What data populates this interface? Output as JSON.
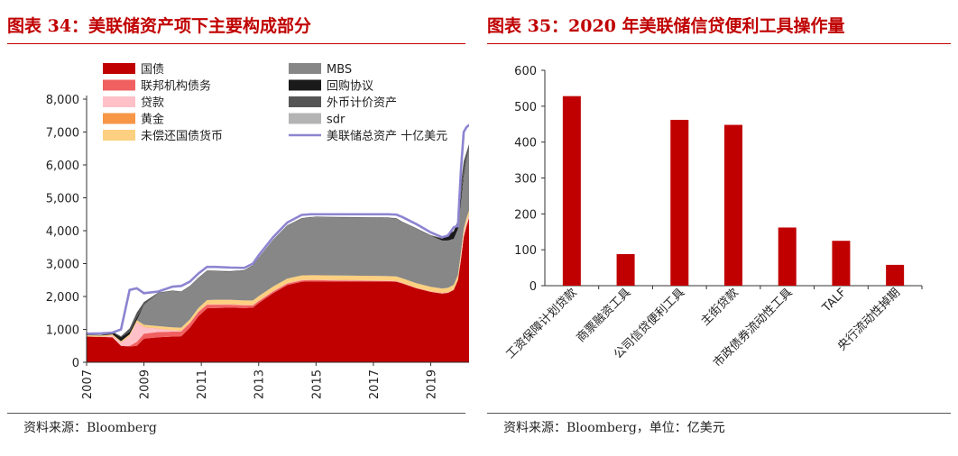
{
  "chart_data": [
    {
      "type": "area",
      "title": "图表 34：美联储资产项下主要构成部分",
      "xlabel": "",
      "ylabel": "",
      "x_ticks": [
        "2007",
        "2009",
        "2011",
        "2013",
        "2015",
        "2017",
        "2019"
      ],
      "y_ticks": [
        "0",
        "1,000",
        "2,000",
        "3,000",
        "4,000",
        "5,000",
        "6,000",
        "7,000",
        "8,000"
      ],
      "ylim": [
        0,
        8000
      ],
      "xlim": [
        2007,
        2020.4
      ],
      "x": [
        2007.0,
        2007.5,
        2007.9,
        2008.2,
        2008.5,
        2008.75,
        2009.0,
        2009.5,
        2010.0,
        2010.3,
        2010.6,
        2010.9,
        2011.2,
        2011.5,
        2012.0,
        2012.5,
        2012.8,
        2013.0,
        2013.5,
        2014.0,
        2014.5,
        2014.8,
        2015.0,
        2015.5,
        2016.0,
        2016.5,
        2017.0,
        2017.5,
        2017.8,
        2018.0,
        2018.5,
        2019.0,
        2019.4,
        2019.6,
        2019.8,
        2019.95,
        2020.05,
        2020.15,
        2020.25,
        2020.4
      ],
      "series": [
        {
          "name": "国债",
          "color": "#c00000",
          "values": [
            780,
            770,
            760,
            500,
            480,
            500,
            720,
            760,
            780,
            790,
            1050,
            1400,
            1640,
            1650,
            1660,
            1650,
            1660,
            1800,
            2100,
            2350,
            2450,
            2460,
            2460,
            2460,
            2460,
            2460,
            2460,
            2460,
            2450,
            2400,
            2250,
            2140,
            2090,
            2110,
            2200,
            2500,
            3100,
            3800,
            4150,
            4550
          ]
        },
        {
          "name": "联邦机构债务",
          "color": "#f06060",
          "values": [
            0,
            0,
            0,
            0,
            20,
            120,
            150,
            160,
            150,
            150,
            140,
            130,
            110,
            100,
            90,
            80,
            70,
            60,
            50,
            45,
            40,
            35,
            35,
            30,
            25,
            20,
            15,
            10,
            8,
            5,
            3,
            3,
            2,
            2,
            2,
            2,
            2,
            2,
            2,
            2
          ]
        },
        {
          "name": "贷款",
          "color": "#ffc0c8",
          "values": [
            0,
            0,
            50,
            100,
            300,
            600,
            200,
            100,
            40,
            20,
            10,
            10,
            10,
            10,
            10,
            10,
            10,
            10,
            10,
            10,
            10,
            10,
            10,
            10,
            10,
            10,
            10,
            10,
            10,
            10,
            10,
            10,
            10,
            10,
            10,
            10,
            80,
            120,
            100,
            90
          ]
        },
        {
          "name": "黄金",
          "color": "#f79646",
          "values": [
            11,
            11,
            11,
            11,
            11,
            11,
            11,
            11,
            11,
            11,
            11,
            11,
            11,
            11,
            11,
            11,
            11,
            11,
            11,
            11,
            11,
            11,
            11,
            11,
            11,
            11,
            11,
            11,
            11,
            11,
            11,
            11,
            11,
            11,
            11,
            11,
            11,
            11,
            11,
            11
          ]
        },
        {
          "name": "未偿还国债货币",
          "color": "#fcd080",
          "values": [
            30,
            30,
            30,
            30,
            40,
            50,
            60,
            70,
            80,
            80,
            90,
            100,
            120,
            130,
            130,
            130,
            130,
            130,
            130,
            130,
            130,
            130,
            130,
            130,
            130,
            130,
            130,
            130,
            130,
            130,
            130,
            130,
            130,
            130,
            130,
            130,
            130,
            130,
            130,
            130
          ]
        },
        {
          "name": "MBS",
          "color": "#878787",
          "values": [
            0,
            0,
            0,
            0,
            0,
            0,
            600,
            1000,
            1100,
            1080,
            1000,
            900,
            880,
            860,
            850,
            900,
            1050,
            1150,
            1400,
            1600,
            1720,
            1750,
            1760,
            1760,
            1760,
            1760,
            1760,
            1760,
            1750,
            1700,
            1650,
            1550,
            1460,
            1440,
            1400,
            1400,
            1500,
            1600,
            1800,
            1950
          ]
        },
        {
          "name": "回购协议",
          "color": "#1a1a1a",
          "values": [
            0,
            0,
            60,
            120,
            80,
            80,
            10,
            0,
            0,
            0,
            0,
            0,
            0,
            0,
            0,
            0,
            0,
            0,
            0,
            0,
            0,
            0,
            0,
            0,
            0,
            0,
            0,
            0,
            0,
            0,
            0,
            0,
            50,
            180,
            220,
            250,
            200,
            100,
            50,
            20
          ]
        },
        {
          "name": "外币计价资产",
          "color": "#555555",
          "values": [
            20,
            20,
            20,
            30,
            100,
            150,
            80,
            20,
            20,
            20,
            20,
            20,
            20,
            20,
            20,
            20,
            20,
            20,
            20,
            20,
            20,
            20,
            20,
            20,
            20,
            20,
            20,
            20,
            20,
            20,
            20,
            20,
            20,
            20,
            20,
            20,
            400,
            350,
            150,
            50
          ]
        },
        {
          "name": "sdr",
          "color": "#b4b4b4",
          "values": [
            2,
            2,
            2,
            2,
            2,
            2,
            5,
            5,
            5,
            5,
            5,
            5,
            5,
            5,
            5,
            5,
            5,
            5,
            5,
            5,
            5,
            5,
            5,
            5,
            5,
            5,
            5,
            5,
            5,
            5,
            5,
            5,
            5,
            5,
            5,
            5,
            5,
            5,
            5,
            5
          ]
        }
      ],
      "line": {
        "name": "美联储总资产 十亿美元",
        "color": "#8c84d0",
        "values": [
          870,
          880,
          900,
          1000,
          2200,
          2250,
          2100,
          2150,
          2300,
          2320,
          2450,
          2700,
          2900,
          2900,
          2880,
          2870,
          3000,
          3250,
          3800,
          4250,
          4480,
          4500,
          4500,
          4500,
          4500,
          4500,
          4500,
          4500,
          4490,
          4420,
          4200,
          3950,
          3800,
          3850,
          4100,
          4150,
          5800,
          7000,
          7150,
          7250
        ]
      },
      "legend_order": [
        "国债",
        "MBS",
        "联邦机构债务",
        "回购协议",
        "贷款",
        "外币计价资产",
        "黄金",
        "sdr",
        "未偿还国债货币",
        "美联储总资产 十亿美元"
      ]
    },
    {
      "type": "bar",
      "title": "图表 35：2020 年美联储信贷便利工具操作量",
      "categories": [
        "工资保障计划贷款",
        "商票融资工具",
        "公司信贷便利工具",
        "主街贷款",
        "市政债券流动性工具",
        "TALF",
        "央行流动性掉期"
      ],
      "values": [
        528,
        88,
        462,
        448,
        162,
        125,
        58
      ],
      "ylim": [
        0,
        600
      ],
      "y_ticks": [
        "0",
        "100",
        "200",
        "300",
        "400",
        "500",
        "600"
      ],
      "color": "#c00000",
      "xlabel": "",
      "ylabel": ""
    }
  ],
  "sources": {
    "left": "资料来源：Bloomberg",
    "right": "资料来源：Bloomberg，单位：亿美元"
  }
}
